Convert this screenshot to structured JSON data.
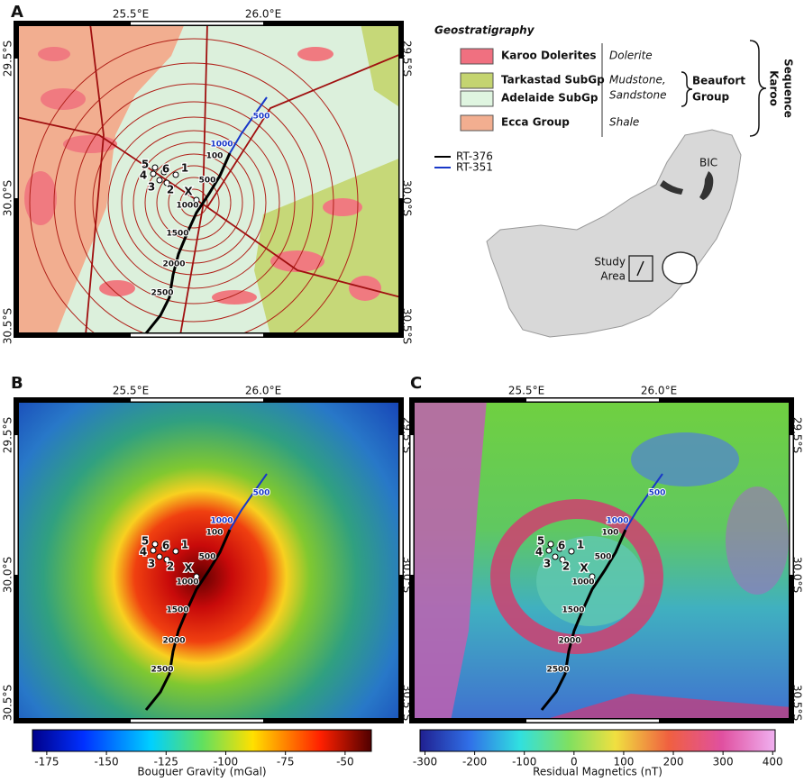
{
  "panel_labels": [
    "A",
    "B",
    "C"
  ],
  "map_labels": {
    "lon": [
      "25.5°E",
      "26.0°E"
    ],
    "lat": [
      "29.5°S",
      "30.0°S",
      "30.5°S"
    ],
    "sites": [
      "1",
      "2",
      "3",
      "4",
      "5",
      "6",
      "X"
    ],
    "rt376_distances": [
      100,
      500,
      1000,
      1500,
      2000,
      2500
    ],
    "rt351_distances": [
      500,
      1000
    ]
  },
  "legend": {
    "title": "Geostratigraphy",
    "units": [
      "Karoo Dolerites",
      "Tarkastad SubGp",
      "Adelaide SubGp",
      "Ecca Group"
    ],
    "dolerite": "Dolerite",
    "mudstone_sandstone": [
      "Mudstone,",
      "Sandstone"
    ],
    "shale": "Shale",
    "beaufort_group": [
      "Beaufort",
      "Group"
    ],
    "karoo_sequence": [
      "Karoo",
      "Sequence"
    ],
    "lines": [
      "RT-376",
      "RT-351"
    ]
  },
  "inset": {
    "bic": "BIC",
    "study_area": [
      "Study",
      "Area"
    ]
  },
  "gravity_colorbar": {
    "label": "Bouguer Gravity (mGal)",
    "range": [
      -181,
      -39
    ],
    "ticks": [
      -175,
      -150,
      -125,
      -100,
      -75,
      -50
    ]
  },
  "magnetics_colorbar": {
    "label": "Residual Magnetics (nT)",
    "range": [
      -310,
      405
    ],
    "ticks": [
      -300,
      -200,
      -100,
      0,
      100,
      200,
      300,
      400
    ]
  }
}
